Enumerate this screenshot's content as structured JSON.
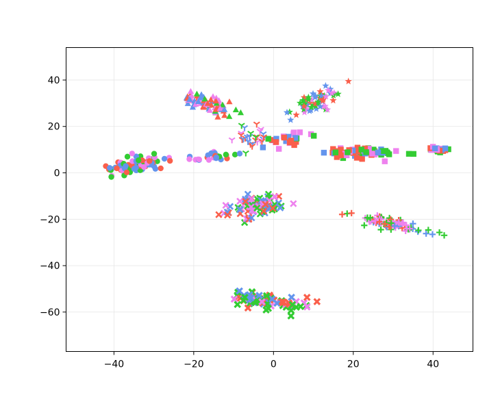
{
  "chart_data": {
    "type": "scatter",
    "title": "",
    "xlabel": "",
    "ylabel": "",
    "xlim": [
      -52,
      50
    ],
    "ylim": [
      -77,
      54
    ],
    "xticks": [
      -40,
      -20,
      0,
      20,
      40
    ],
    "yticks": [
      -60,
      -40,
      -20,
      0,
      20,
      40
    ],
    "xtick_labels": [
      "−40",
      "−20",
      "0",
      "20",
      "40"
    ],
    "ytick_labels": [
      "−60",
      "−40",
      "−20",
      "0",
      "20",
      "40"
    ],
    "grid": true,
    "legend": "none",
    "colors": [
      "#fa5f4b",
      "#33cc33",
      "#6495ed",
      "#ee82ee"
    ],
    "marker_types": [
      "circle",
      "triangle",
      "square",
      "star",
      "tri-down",
      "plus",
      "x-cross",
      "x-mark"
    ],
    "clusters": [
      {
        "marker": "circle",
        "center": [
          -35,
          3
        ],
        "spread": [
          7,
          3
        ],
        "n": 90,
        "axis_angle": 20
      },
      {
        "marker": "circle",
        "center": [
          -15,
          7
        ],
        "spread": [
          5,
          2
        ],
        "n": 25,
        "axis_angle": 10
      },
      {
        "marker": "triangle",
        "center": [
          -17,
          30
        ],
        "spread": [
          7,
          3
        ],
        "n": 80,
        "axis_angle": -35
      },
      {
        "marker": "square",
        "center": [
          22,
          9
        ],
        "spread": [
          8,
          2
        ],
        "n": 70,
        "axis_angle": 0
      },
      {
        "marker": "square",
        "center": [
          3,
          14
        ],
        "spread": [
          5,
          3
        ],
        "n": 25,
        "axis_angle": 30
      },
      {
        "marker": "star",
        "center": [
          10,
          30
        ],
        "spread": [
          8,
          3
        ],
        "n": 60,
        "axis_angle": 40
      },
      {
        "marker": "square",
        "center": [
          41,
          10
        ],
        "spread": [
          2,
          1
        ],
        "n": 30,
        "axis_angle": 0
      },
      {
        "marker": "plus",
        "center": [
          30,
          -22
        ],
        "spread": [
          10,
          2
        ],
        "n": 80,
        "axis_angle": -22
      },
      {
        "marker": "x-cross",
        "center": [
          -5,
          -15
        ],
        "spread": [
          7,
          4
        ],
        "n": 90,
        "axis_angle": 15
      },
      {
        "marker": "x-mark",
        "center": [
          -2,
          -55
        ],
        "spread": [
          3,
          9
        ],
        "n": 80,
        "axis_angle": 80
      },
      {
        "marker": "tri-down",
        "center": [
          -6,
          15
        ],
        "spread": [
          4,
          4
        ],
        "n": 30,
        "axis_angle": 45
      }
    ]
  }
}
